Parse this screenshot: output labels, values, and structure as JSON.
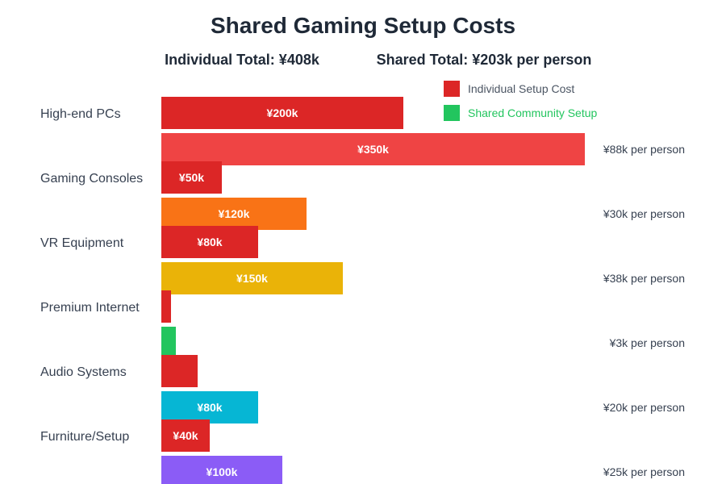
{
  "chart_data": {
    "type": "bar",
    "orientation": "horizontal",
    "title": "Shared Gaming Setup Costs",
    "unit": "¥k",
    "categories": [
      "High-end PCs",
      "Gaming Consoles",
      "VR Equipment",
      "Premium Internet",
      "Audio Systems",
      "Furniture/Setup"
    ],
    "series": [
      {
        "name": "Individual Setup Cost",
        "values": [
          200,
          50,
          80,
          8,
          30,
          40
        ],
        "labels": [
          "¥200k",
          "¥50k",
          "¥80k",
          "",
          "",
          "¥40k"
        ],
        "color": "#dc2626"
      },
      {
        "name": "Shared Community Setup",
        "values": [
          350,
          120,
          150,
          12,
          80,
          100
        ],
        "labels": [
          "¥350k",
          "¥120k",
          "¥150k",
          "",
          "¥80k",
          "¥100k"
        ],
        "colors": [
          "#ef4444",
          "#f97316",
          "#eab308",
          "#22c55e",
          "#06b6d4",
          "#8b5cf6"
        ],
        "per_person": [
          "¥88k per person",
          "¥30k per person",
          "¥38k per person",
          "¥3k per person",
          "¥20k per person",
          "¥25k per person"
        ]
      }
    ],
    "legend": {
      "position": "top-right",
      "items": [
        {
          "label": "Individual Setup Cost",
          "color": "#dc2626",
          "text_color": "#4b5563"
        },
        {
          "label": "Shared Community Setup",
          "color": "#22c55e",
          "text_color": "#22c55e"
        }
      ]
    },
    "totals": {
      "individual": "Individual Total: ¥408k",
      "shared": "Shared Total: ¥203k per person"
    },
    "grid": false
  }
}
